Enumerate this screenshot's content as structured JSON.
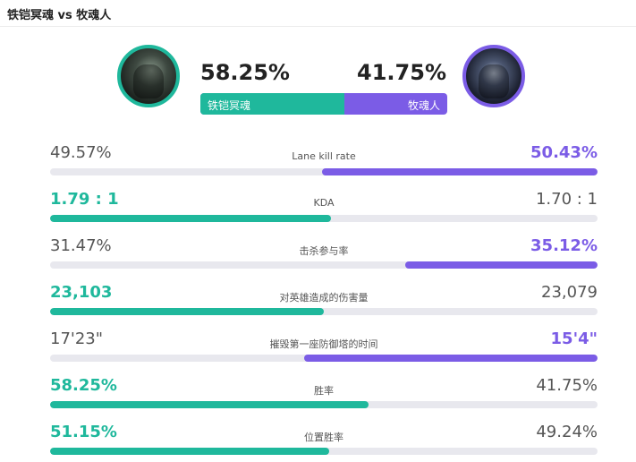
{
  "header": {
    "title": "铁铠冥魂 vs 牧魂人"
  },
  "matchup": {
    "left": {
      "name": "铁铠冥魂",
      "win_pct": "58.25%",
      "win_fraction": 0.5825,
      "color": "#1fb89c",
      "avatar_icon": "champion-portrait-icon"
    },
    "right": {
      "name": "牧魂人",
      "win_pct": "41.75%",
      "win_fraction": 0.4175,
      "color": "#7b5ce6",
      "avatar_icon": "champion-portrait-icon"
    }
  },
  "stats": [
    {
      "label": "Lane kill rate",
      "left": "49.57%",
      "right": "50.43%",
      "winner": "right",
      "bar_side": "right",
      "bar_fraction": 0.503
    },
    {
      "label": "KDA",
      "left": "1.79 : 1",
      "right": "1.70 : 1",
      "winner": "left",
      "bar_side": "left",
      "bar_fraction": 0.513
    },
    {
      "label": "击杀参与率",
      "left": "31.47%",
      "right": "35.12%",
      "winner": "right",
      "bar_side": "right",
      "bar_fraction": 0.351
    },
    {
      "label": "对英雄造成的伤害量",
      "left": "23,103",
      "right": "23,079",
      "winner": "left",
      "bar_side": "left",
      "bar_fraction": 0.5
    },
    {
      "label": "摧毁第一座防御塔的时间",
      "left": "17'23\"",
      "right": "15'4\"",
      "winner": "right",
      "bar_side": "right",
      "bar_fraction": 0.536
    },
    {
      "label": "胜率",
      "left": "58.25%",
      "right": "41.75%",
      "winner": "left",
      "bar_side": "left",
      "bar_fraction": 0.582
    },
    {
      "label": "位置胜率",
      "left": "51.15%",
      "right": "49.24%",
      "winner": "left",
      "bar_side": "left",
      "bar_fraction": 0.51
    }
  ]
}
